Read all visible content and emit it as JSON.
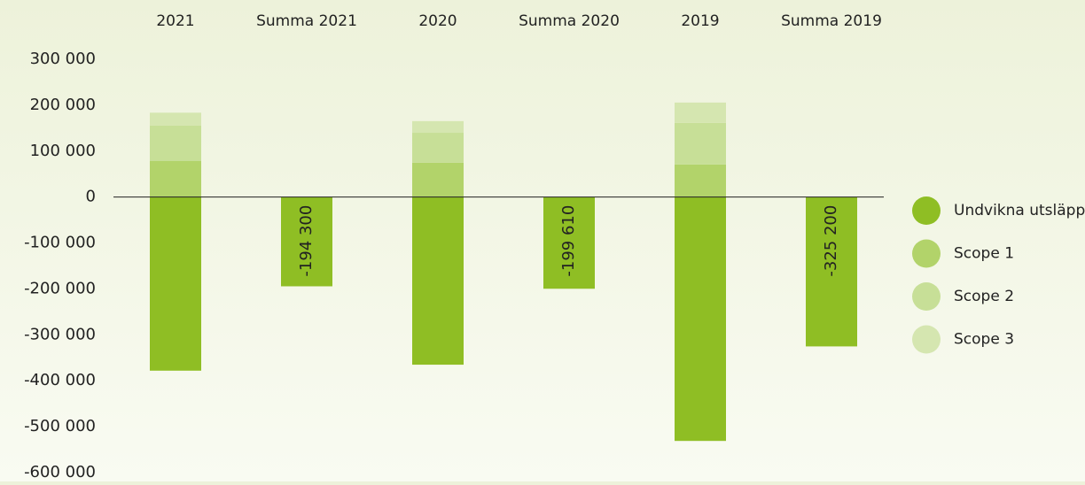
{
  "chart_data": {
    "type": "bar",
    "categories": [
      "2021",
      "Summa 2021",
      "2020",
      "Summa 2020",
      "2019",
      "Summa 2019"
    ],
    "series": [
      {
        "name": "Undvikna utsläpp",
        "color": "#8fbe24",
        "values": [
          -378000,
          -194300,
          -365000,
          -199610,
          -531000,
          -325200
        ],
        "value_labels": [
          null,
          "-194 300",
          null,
          "-199 610",
          null,
          "-325 200"
        ]
      },
      {
        "name": "Scope 1",
        "color": "#b2d36a",
        "values": [
          79000,
          null,
          75000,
          null,
          71000,
          null
        ]
      },
      {
        "name": "Scope 2",
        "color": "#c7df97",
        "values": [
          77000,
          null,
          65000,
          null,
          90500,
          null
        ]
      },
      {
        "name": "Scope 3",
        "color": "#d5e6b0",
        "values": [
          27700,
          null,
          25390,
          null,
          44300,
          null
        ]
      }
    ],
    "ylim": [
      -600000,
      300000
    ],
    "yticks": [
      {
        "value": 300000,
        "label": "300 000"
      },
      {
        "value": 200000,
        "label": "200 000"
      },
      {
        "value": 100000,
        "label": "100 000"
      },
      0,
      {
        "value": -100000,
        "label": "-100 000"
      },
      {
        "value": -200000,
        "label": "-200 000"
      },
      {
        "value": -300000,
        "label": "-300 000"
      },
      {
        "value": -400000,
        "label": "-400 000"
      },
      {
        "value": -500000,
        "label": "-500 000"
      },
      {
        "value": -600000,
        "label": "-600 000"
      }
    ],
    "legend": "right"
  }
}
